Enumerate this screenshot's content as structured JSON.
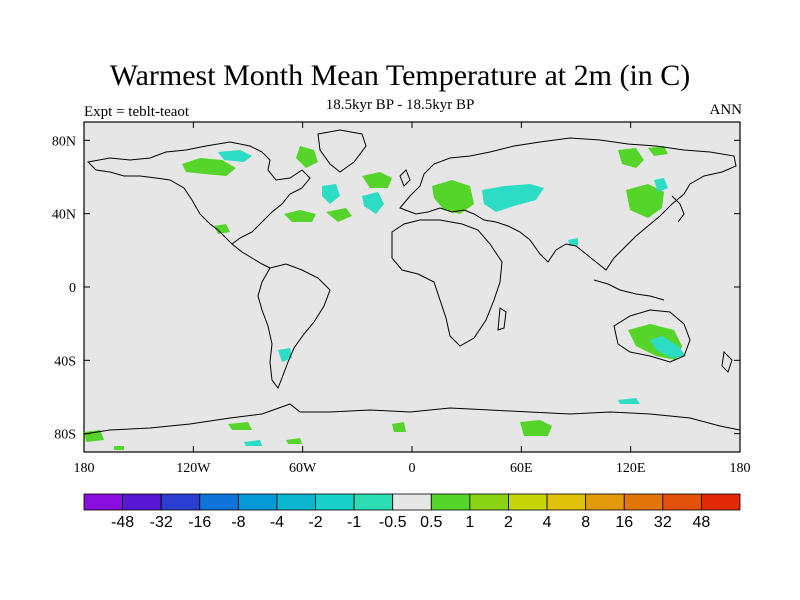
{
  "map": {
    "title": "Warmest Month Mean Temperature at 2m (in C)",
    "subtitle": "18.5kyr BP - 18.5kyr BP",
    "left_label": "Expt = teblt-teaot",
    "right_label": "ANN",
    "projection": "cylindrical equidistant",
    "background_color": "#e6e6e6",
    "coastline_color": "#000000",
    "lon_ticks": [
      "180",
      "120W",
      "60W",
      "0",
      "60E",
      "120E",
      "180"
    ],
    "lat_ticks": [
      "80N",
      "40N",
      "0",
      "40S",
      "80S"
    ],
    "lon_tick_values": [
      -180,
      -120,
      -60,
      0,
      60,
      120,
      180
    ],
    "lat_tick_values": [
      80,
      40,
      0,
      -40,
      -80
    ]
  },
  "colorbar": {
    "colors": [
      "#8b0ee0",
      "#5a17d6",
      "#2a3ed1",
      "#0f74d9",
      "#079ad8",
      "#0ab7cf",
      "#17d1c8",
      "#2cdcb2",
      "#e6e6e6",
      "#55d42a",
      "#8ad414",
      "#c6d40a",
      "#e0c20a",
      "#e29a0a",
      "#e2760a",
      "#e2520a",
      "#e22a0a"
    ],
    "labels": [
      "-48",
      "-32",
      "-16",
      "-8",
      "-4",
      "-2",
      "-1",
      "-0.5",
      "0.5",
      "1",
      "2",
      "4",
      "8",
      "16",
      "32",
      "48"
    ]
  },
  "regions": {
    "green_color": "#55d42a",
    "cyan_color": "#2cdcc4"
  }
}
